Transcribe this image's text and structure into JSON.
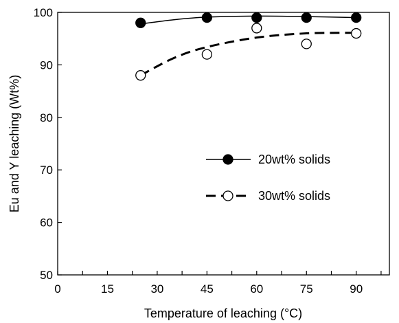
{
  "chart_data": {
    "type": "scatter",
    "xlabel": "Temperature of leaching (°C)",
    "ylabel": "Eu and Y leaching (Wt%)",
    "xlim": [
      0,
      100
    ],
    "ylim": [
      50,
      100
    ],
    "xticks": [
      0,
      15,
      30,
      45,
      60,
      75,
      90
    ],
    "yticks": [
      50,
      60,
      70,
      80,
      90,
      100
    ],
    "grid": false,
    "legend_position": "center-right",
    "series": [
      {
        "name": "20wt% solids",
        "marker": "filled-circle",
        "line": "solid",
        "color": "#000000",
        "x": [
          25,
          45,
          60,
          75,
          90
        ],
        "y": [
          98,
          99,
          99,
          99,
          99
        ],
        "fit": [
          [
            25,
            97.8
          ],
          [
            35,
            98.6
          ],
          [
            45,
            99.1
          ],
          [
            60,
            99.3
          ],
          [
            75,
            99.2
          ],
          [
            90,
            99.0
          ]
        ]
      },
      {
        "name": "30wt% solids",
        "marker": "open-circle",
        "line": "dashed",
        "color": "#000000",
        "x": [
          25,
          45,
          60,
          75,
          90
        ],
        "y": [
          88,
          92,
          97,
          94,
          96
        ],
        "fit": [
          [
            25,
            88.0
          ],
          [
            35,
            91.3
          ],
          [
            45,
            93.4
          ],
          [
            60,
            95.2
          ],
          [
            75,
            96.0
          ],
          [
            90,
            96.1
          ]
        ]
      }
    ]
  }
}
